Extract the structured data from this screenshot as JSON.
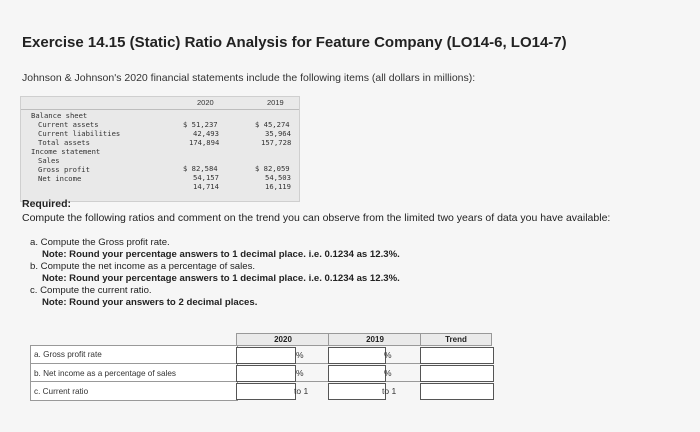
{
  "title": "Exercise 14.15 (Static) Ratio Analysis for Feature Company (LO14-6, LO14-7)",
  "intro": "Johnson & Johnson's 2020 financial statements include the following items (all dollars in millions):",
  "statement": {
    "col_2020": "2020",
    "col_2019": "2019",
    "rows": [
      {
        "label": "Balance sheet",
        "v2020": "",
        "v2019": "",
        "indent": 0
      },
      {
        "label": "Current assets",
        "v2020": "$ 51,237",
        "v2019": "$ 45,274",
        "indent": 1
      },
      {
        "label": "Current liabilities",
        "v2020": "42,493",
        "v2019": "35,964",
        "indent": 1
      },
      {
        "label": "Total assets",
        "v2020": "174,894",
        "v2019": "157,728",
        "indent": 1
      },
      {
        "label": "Income statement",
        "v2020": "",
        "v2019": "",
        "indent": 0
      },
      {
        "label": "Sales",
        "v2020": "$ 82,584",
        "v2019": "$ 82,059",
        "indent": 1
      },
      {
        "label": "Gross profit",
        "v2020": "54,157",
        "v2019": "54,503",
        "indent": 1
      },
      {
        "label": "Net income",
        "v2020": "14,714",
        "v2019": "16,119",
        "indent": 1
      }
    ]
  },
  "required_title": "Required:",
  "required_text": "Compute the following ratios and comment on the trend you can observe from the limited two years of data you have available:",
  "steps": [
    {
      "text": "a. Compute the Gross profit rate.",
      "note": "Note: Round your percentage answers to 1 decimal place. i.e. 0.1234 as 12.3%."
    },
    {
      "text": "b. Compute the net income as a percentage of sales.",
      "note": "Note: Round your percentage answers to 1 decimal place. i.e. 0.1234 as 12.3%."
    },
    {
      "text": "c. Compute the current ratio.",
      "note": "Note: Round your answers to 2 decimal places."
    }
  ],
  "answer_table": {
    "headers": [
      "2020",
      "2019",
      "Trend"
    ],
    "rows": [
      {
        "label": "a. Gross profit rate",
        "unit_2020": "%",
        "unit_2019": "%",
        "value_2020": "",
        "value_2019": "",
        "trend": ""
      },
      {
        "label": "b. Net income as a percentage of sales",
        "unit_2020": "%",
        "unit_2019": "%",
        "value_2020": "",
        "value_2019": "",
        "trend": ""
      },
      {
        "label": "c. Current ratio",
        "unit_2020": "to 1",
        "unit_2019": "to 1",
        "value_2020": "",
        "value_2019": "",
        "trend": ""
      }
    ]
  }
}
